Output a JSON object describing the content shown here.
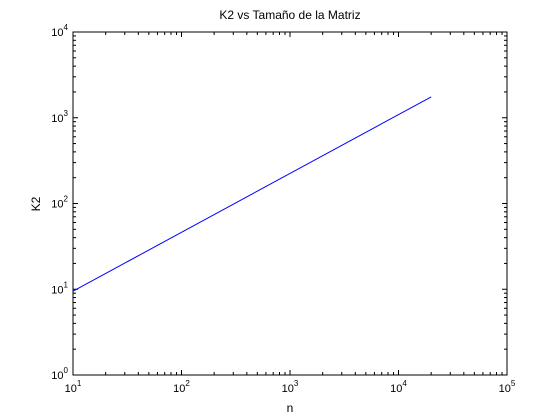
{
  "chart_data": {
    "type": "line",
    "title": "K2 vs Tamaño de la Matriz",
    "xlabel": "n",
    "ylabel": "K2",
    "x_scale": "log",
    "y_scale": "log",
    "xlim": [
      10,
      100000
    ],
    "ylim": [
      1,
      10000
    ],
    "grid": false,
    "legend": "none",
    "x_ticks": [
      {
        "base": "10",
        "exp": "1"
      },
      {
        "base": "10",
        "exp": "2"
      },
      {
        "base": "10",
        "exp": "3"
      },
      {
        "base": "10",
        "exp": "4"
      },
      {
        "base": "10",
        "exp": "5"
      }
    ],
    "y_ticks": [
      {
        "base": "10",
        "exp": "0"
      },
      {
        "base": "10",
        "exp": "1"
      },
      {
        "base": "10",
        "exp": "2"
      },
      {
        "base": "10",
        "exp": "3"
      },
      {
        "base": "10",
        "exp": "4"
      }
    ],
    "series": [
      {
        "color": "#0000ff",
        "x": [
          10,
          20000
        ],
        "y": [
          9.5,
          1750
        ]
      }
    ]
  }
}
